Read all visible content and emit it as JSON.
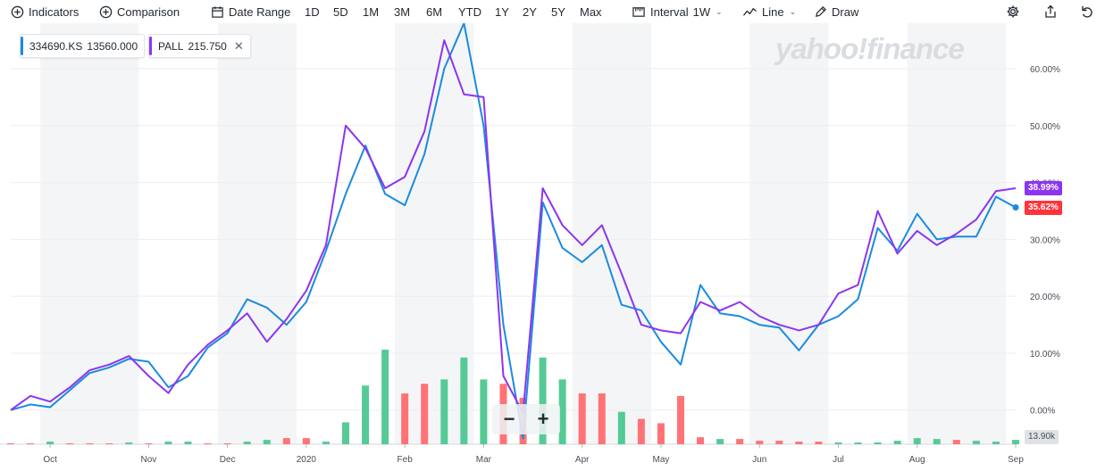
{
  "toolbar": {
    "indicators": "Indicators",
    "comparison": "Comparison",
    "date_range": "Date Range",
    "ranges": [
      "1D",
      "5D",
      "1M",
      "3M",
      "6M",
      "YTD",
      "1Y",
      "2Y",
      "5Y",
      "Max"
    ],
    "interval_label": "Interval",
    "interval_value": "1W",
    "chart_type": "Line",
    "draw": "Draw"
  },
  "legend": [
    {
      "symbol": "334690.KS",
      "value": "13560.000",
      "color": "#1a8be0"
    },
    {
      "symbol": "PALL",
      "value": "215.750",
      "color": "#8c35f0"
    }
  ],
  "watermark": "yahoo!finance",
  "zoom": {
    "minus": "−",
    "plus": "+"
  },
  "price_tags": {
    "pall": {
      "text": "38.99%",
      "color": "#8c35f0"
    },
    "stock": {
      "text": "35.62%",
      "color": "#ff333a"
    }
  },
  "volume_tag": "13.90k",
  "chart_data": {
    "type": "line",
    "ylim": [
      -6,
      68
    ],
    "y_ticks": [
      "0.00%",
      "10.00%",
      "20.00%",
      "30.00%",
      "40.00%",
      "50.00%",
      "60.00%"
    ],
    "y_tick_values": [
      0,
      10,
      20,
      30,
      40,
      50,
      60
    ],
    "x_labels": [
      "Oct",
      "Nov",
      "Dec",
      "2020",
      "Feb",
      "Mar",
      "Apr",
      "May",
      "Jun",
      "Jul",
      "Aug",
      "Sep"
    ],
    "x_label_positions": [
      2,
      7,
      11,
      15,
      20,
      24,
      29,
      33,
      38,
      42,
      46,
      51
    ],
    "series": [
      {
        "color": "#1a8be0",
        "values": [
          0,
          1,
          0.5,
          3.5,
          6.5,
          7.5,
          9,
          8.5,
          4,
          6,
          11,
          13.5,
          19.5,
          18,
          15,
          19,
          28,
          38,
          46.5,
          38,
          36,
          45,
          60,
          68,
          50,
          15,
          -5,
          36.5,
          28.5,
          26,
          29,
          18.5,
          17.5,
          12,
          8,
          22,
          17,
          16.5,
          15,
          14.5,
          10.5,
          15,
          16.5,
          19.5,
          32,
          28,
          34.5,
          30,
          30.5,
          30.5,
          37.5,
          35.62
        ]
      },
      {
        "color": "#8c35f0",
        "values": [
          0,
          2.5,
          1.5,
          4,
          7,
          8,
          9.5,
          6,
          3,
          8,
          11.5,
          14,
          17,
          12,
          16,
          21,
          29,
          50,
          46,
          39,
          41,
          49,
          65,
          55.5,
          55,
          6,
          -0.5,
          39,
          32.5,
          29,
          32.5,
          24,
          15,
          14,
          13.5,
          19,
          17.5,
          19,
          16.5,
          15,
          14,
          15,
          20.5,
          22,
          35,
          27.5,
          31.5,
          29,
          31,
          33.5,
          38.5,
          38.99
        ]
      }
    ],
    "volume": {
      "max": 11,
      "values": [
        0.1,
        0.1,
        0.3,
        0.1,
        0.1,
        0.1,
        0.2,
        0.1,
        0.3,
        0.3,
        0.1,
        0.1,
        0.3,
        0.5,
        0.7,
        0.7,
        0.3,
        2.5,
        6.7,
        10.8,
        5.8,
        6.9,
        7.4,
        9.9,
        7.4,
        6.9,
        5.3,
        9.9,
        7.4,
        5.8,
        5.8,
        3.7,
        2.9,
        2.4,
        5.5,
        0.8,
        0.6,
        0.6,
        0.4,
        0.4,
        0.3,
        0.3,
        0.2,
        0.2,
        0.2,
        0.4,
        0.7,
        0.6,
        0.5,
        0.4,
        0.3,
        0.5
      ],
      "up": [
        false,
        false,
        true,
        false,
        false,
        false,
        true,
        false,
        true,
        true,
        false,
        false,
        true,
        true,
        false,
        false,
        true,
        true,
        true,
        true,
        false,
        false,
        true,
        true,
        true,
        false,
        false,
        true,
        true,
        false,
        false,
        true,
        false,
        false,
        false,
        false,
        true,
        false,
        false,
        false,
        false,
        false,
        true,
        true,
        true,
        true,
        true,
        true,
        false,
        true,
        true,
        true
      ]
    }
  }
}
